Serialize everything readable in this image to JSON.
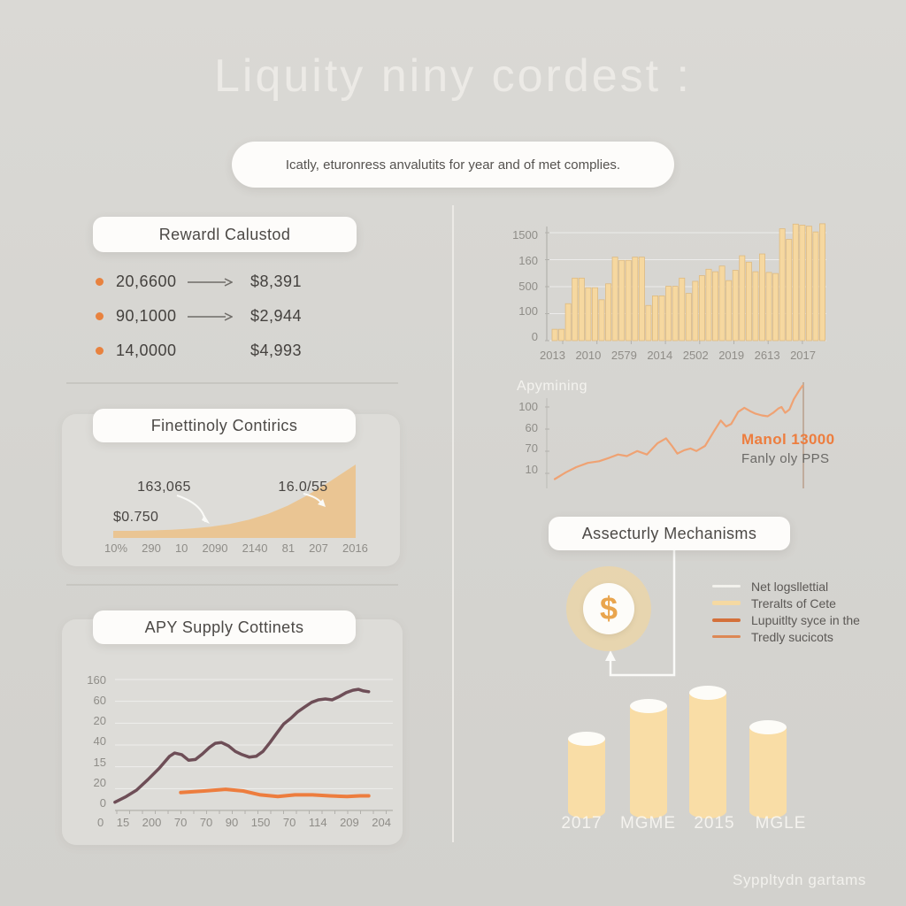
{
  "title": "Liquity niny cordest :",
  "subtitle": "Icatly, eturonress anvalutits for year and of met complies.",
  "footer": "Syppltydn gartams",
  "colors": {
    "background": "#d6d5d1",
    "accent_orange": "#e8823f",
    "bar_fill": "#f6d8a0",
    "line_purple": "#6e4e57",
    "area_fill": "#eac593",
    "cylinder_fill": "#f9dda6",
    "card_white": "#fdfcfa"
  },
  "reward": {
    "header": "Rewardl Calustod",
    "rows": [
      {
        "amount": "20,6600",
        "arrow": true,
        "value": "$8,391"
      },
      {
        "amount": "90,1000",
        "arrow": true,
        "value": "$2,944"
      },
      {
        "amount": "14,0000",
        "arrow": false,
        "value": "$4,993"
      }
    ]
  },
  "security": {
    "header": "Assecturly Mechanisms",
    "icon": "$",
    "legend": [
      {
        "label": "Net logsllettial",
        "color": "#f2f1ec",
        "thickness": 3
      },
      {
        "label": "Treralts of Cete",
        "color": "#f5d9a2",
        "thickness": 5
      },
      {
        "label": "Lupuitlty syce in the",
        "color": "#d4703a",
        "thickness": 4
      },
      {
        "label": "Tredly sucicots",
        "color": "#dd8855",
        "thickness": 3
      }
    ]
  },
  "chart_data": [
    {
      "id": "volume-bars",
      "type": "bar",
      "title": "",
      "y_ticks": [
        "1500",
        "160",
        "500",
        "100",
        "0"
      ],
      "x_ticks": [
        "2013",
        "2010",
        "2579",
        "2014",
        "2502",
        "2019",
        "2613",
        "2017"
      ],
      "ylim": [
        0,
        1650
      ],
      "grid": true,
      "legend_position": "none",
      "bar_color": "#f6d8a0",
      "bar_border": "#deba80",
      "values": [
        160,
        160,
        520,
        880,
        880,
        745,
        745,
        575,
        800,
        1175,
        1130,
        1130,
        1175,
        1175,
        495,
        630,
        630,
        765,
        765,
        880,
        665,
        835,
        915,
        1005,
        970,
        1050,
        845,
        990,
        1195,
        1105,
        970,
        1220,
        960,
        945,
        1575,
        1425,
        1640,
        1625,
        1610,
        1530,
        1645
      ]
    },
    {
      "id": "apymining",
      "type": "line",
      "title": "Apymining",
      "y_ticks": [
        "100",
        "60",
        "70",
        "10"
      ],
      "x_ticks": [],
      "grid": false,
      "annotations": [
        {
          "text": "Manol 13000",
          "color": "#ed7d3e"
        },
        {
          "text": "Fanly oly PPS",
          "color": "#6b6966"
        }
      ],
      "series": [
        {
          "name": "Apymining",
          "color": "#efa273",
          "points": [
            [
              0.024,
              0.089
            ],
            [
              0.068,
              0.154
            ],
            [
              0.108,
              0.203
            ],
            [
              0.153,
              0.244
            ],
            [
              0.197,
              0.26
            ],
            [
              0.237,
              0.293
            ],
            [
              0.271,
              0.325
            ],
            [
              0.305,
              0.309
            ],
            [
              0.346,
              0.358
            ],
            [
              0.383,
              0.325
            ],
            [
              0.424,
              0.431
            ],
            [
              0.458,
              0.48
            ],
            [
              0.481,
              0.407
            ],
            [
              0.502,
              0.333
            ],
            [
              0.529,
              0.366
            ],
            [
              0.553,
              0.382
            ],
            [
              0.576,
              0.358
            ],
            [
              0.61,
              0.407
            ],
            [
              0.644,
              0.545
            ],
            [
              0.671,
              0.65
            ],
            [
              0.692,
              0.593
            ],
            [
              0.712,
              0.618
            ],
            [
              0.739,
              0.732
            ],
            [
              0.763,
              0.772
            ],
            [
              0.786,
              0.74
            ],
            [
              0.807,
              0.715
            ],
            [
              0.831,
              0.699
            ],
            [
              0.854,
              0.691
            ],
            [
              0.875,
              0.724
            ],
            [
              0.895,
              0.764
            ],
            [
              0.908,
              0.78
            ],
            [
              0.922,
              0.724
            ],
            [
              0.939,
              0.756
            ],
            [
              0.956,
              0.854
            ],
            [
              0.976,
              0.935
            ],
            [
              0.99,
              0.984
            ]
          ]
        }
      ]
    },
    {
      "id": "growth-area",
      "type": "area",
      "title": "Finettinoly Contirics",
      "x_ticks": [
        "10%",
        "290",
        "10",
        "2090",
        "2140",
        "81",
        "207",
        "2016"
      ],
      "fill": "#eac593",
      "annotations": [
        "163,065",
        "$0.750",
        "16.0/55"
      ],
      "points": [
        [
          0,
          0.096
        ],
        [
          0.08,
          0.096
        ],
        [
          0.16,
          0.103
        ],
        [
          0.24,
          0.112
        ],
        [
          0.32,
          0.128
        ],
        [
          0.4,
          0.152
        ],
        [
          0.48,
          0.19
        ],
        [
          0.56,
          0.248
        ],
        [
          0.64,
          0.33
        ],
        [
          0.72,
          0.44
        ],
        [
          0.8,
          0.58
        ],
        [
          0.88,
          0.74
        ],
        [
          0.94,
          0.87
        ],
        [
          1.0,
          1.0
        ]
      ]
    },
    {
      "id": "apy-lines",
      "type": "line",
      "title": "APY Supply Cottinets",
      "y_ticks": [
        "160",
        "60",
        "20",
        "40",
        "15",
        "20",
        "0"
      ],
      "x_ticks": [
        "0",
        "15",
        "200",
        "70",
        "70",
        "90",
        "150",
        "70",
        "114",
        "209",
        "204"
      ],
      "grid": true,
      "series": [
        {
          "name": "supply",
          "color": "#6e4e57",
          "width": 3.5,
          "points": [
            [
              0.006,
              0.051
            ],
            [
              0.046,
              0.095
            ],
            [
              0.083,
              0.146
            ],
            [
              0.123,
              0.228
            ],
            [
              0.163,
              0.316
            ],
            [
              0.2,
              0.411
            ],
            [
              0.218,
              0.437
            ],
            [
              0.243,
              0.424
            ],
            [
              0.268,
              0.38
            ],
            [
              0.292,
              0.386
            ],
            [
              0.317,
              0.43
            ],
            [
              0.342,
              0.481
            ],
            [
              0.363,
              0.513
            ],
            [
              0.385,
              0.519
            ],
            [
              0.409,
              0.494
            ],
            [
              0.434,
              0.449
            ],
            [
              0.458,
              0.424
            ],
            [
              0.483,
              0.405
            ],
            [
              0.508,
              0.411
            ],
            [
              0.532,
              0.449
            ],
            [
              0.557,
              0.519
            ],
            [
              0.582,
              0.595
            ],
            [
              0.606,
              0.665
            ],
            [
              0.631,
              0.709
            ],
            [
              0.655,
              0.759
            ],
            [
              0.68,
              0.797
            ],
            [
              0.705,
              0.835
            ],
            [
              0.729,
              0.854
            ],
            [
              0.754,
              0.861
            ],
            [
              0.778,
              0.854
            ],
            [
              0.803,
              0.88
            ],
            [
              0.828,
              0.911
            ],
            [
              0.852,
              0.93
            ],
            [
              0.871,
              0.937
            ],
            [
              0.889,
              0.924
            ],
            [
              0.908,
              0.918
            ]
          ]
        },
        {
          "name": "baseline",
          "color": "#ed7d3e",
          "width": 4,
          "points": [
            [
              0.24,
              0.127
            ],
            [
              0.323,
              0.139
            ],
            [
              0.4,
              0.152
            ],
            [
              0.462,
              0.139
            ],
            [
              0.523,
              0.108
            ],
            [
              0.585,
              0.095
            ],
            [
              0.646,
              0.108
            ],
            [
              0.708,
              0.108
            ],
            [
              0.769,
              0.101
            ],
            [
              0.831,
              0.095
            ],
            [
              0.877,
              0.101
            ],
            [
              0.908,
              0.101
            ]
          ]
        }
      ]
    },
    {
      "id": "cylinders",
      "type": "bar",
      "subtype": "cylinder",
      "categories": [
        "2017",
        "MGME",
        "2015",
        "MGLE"
      ],
      "values": [
        82,
        119,
        134,
        95
      ],
      "color": "#f9dda6"
    }
  ]
}
